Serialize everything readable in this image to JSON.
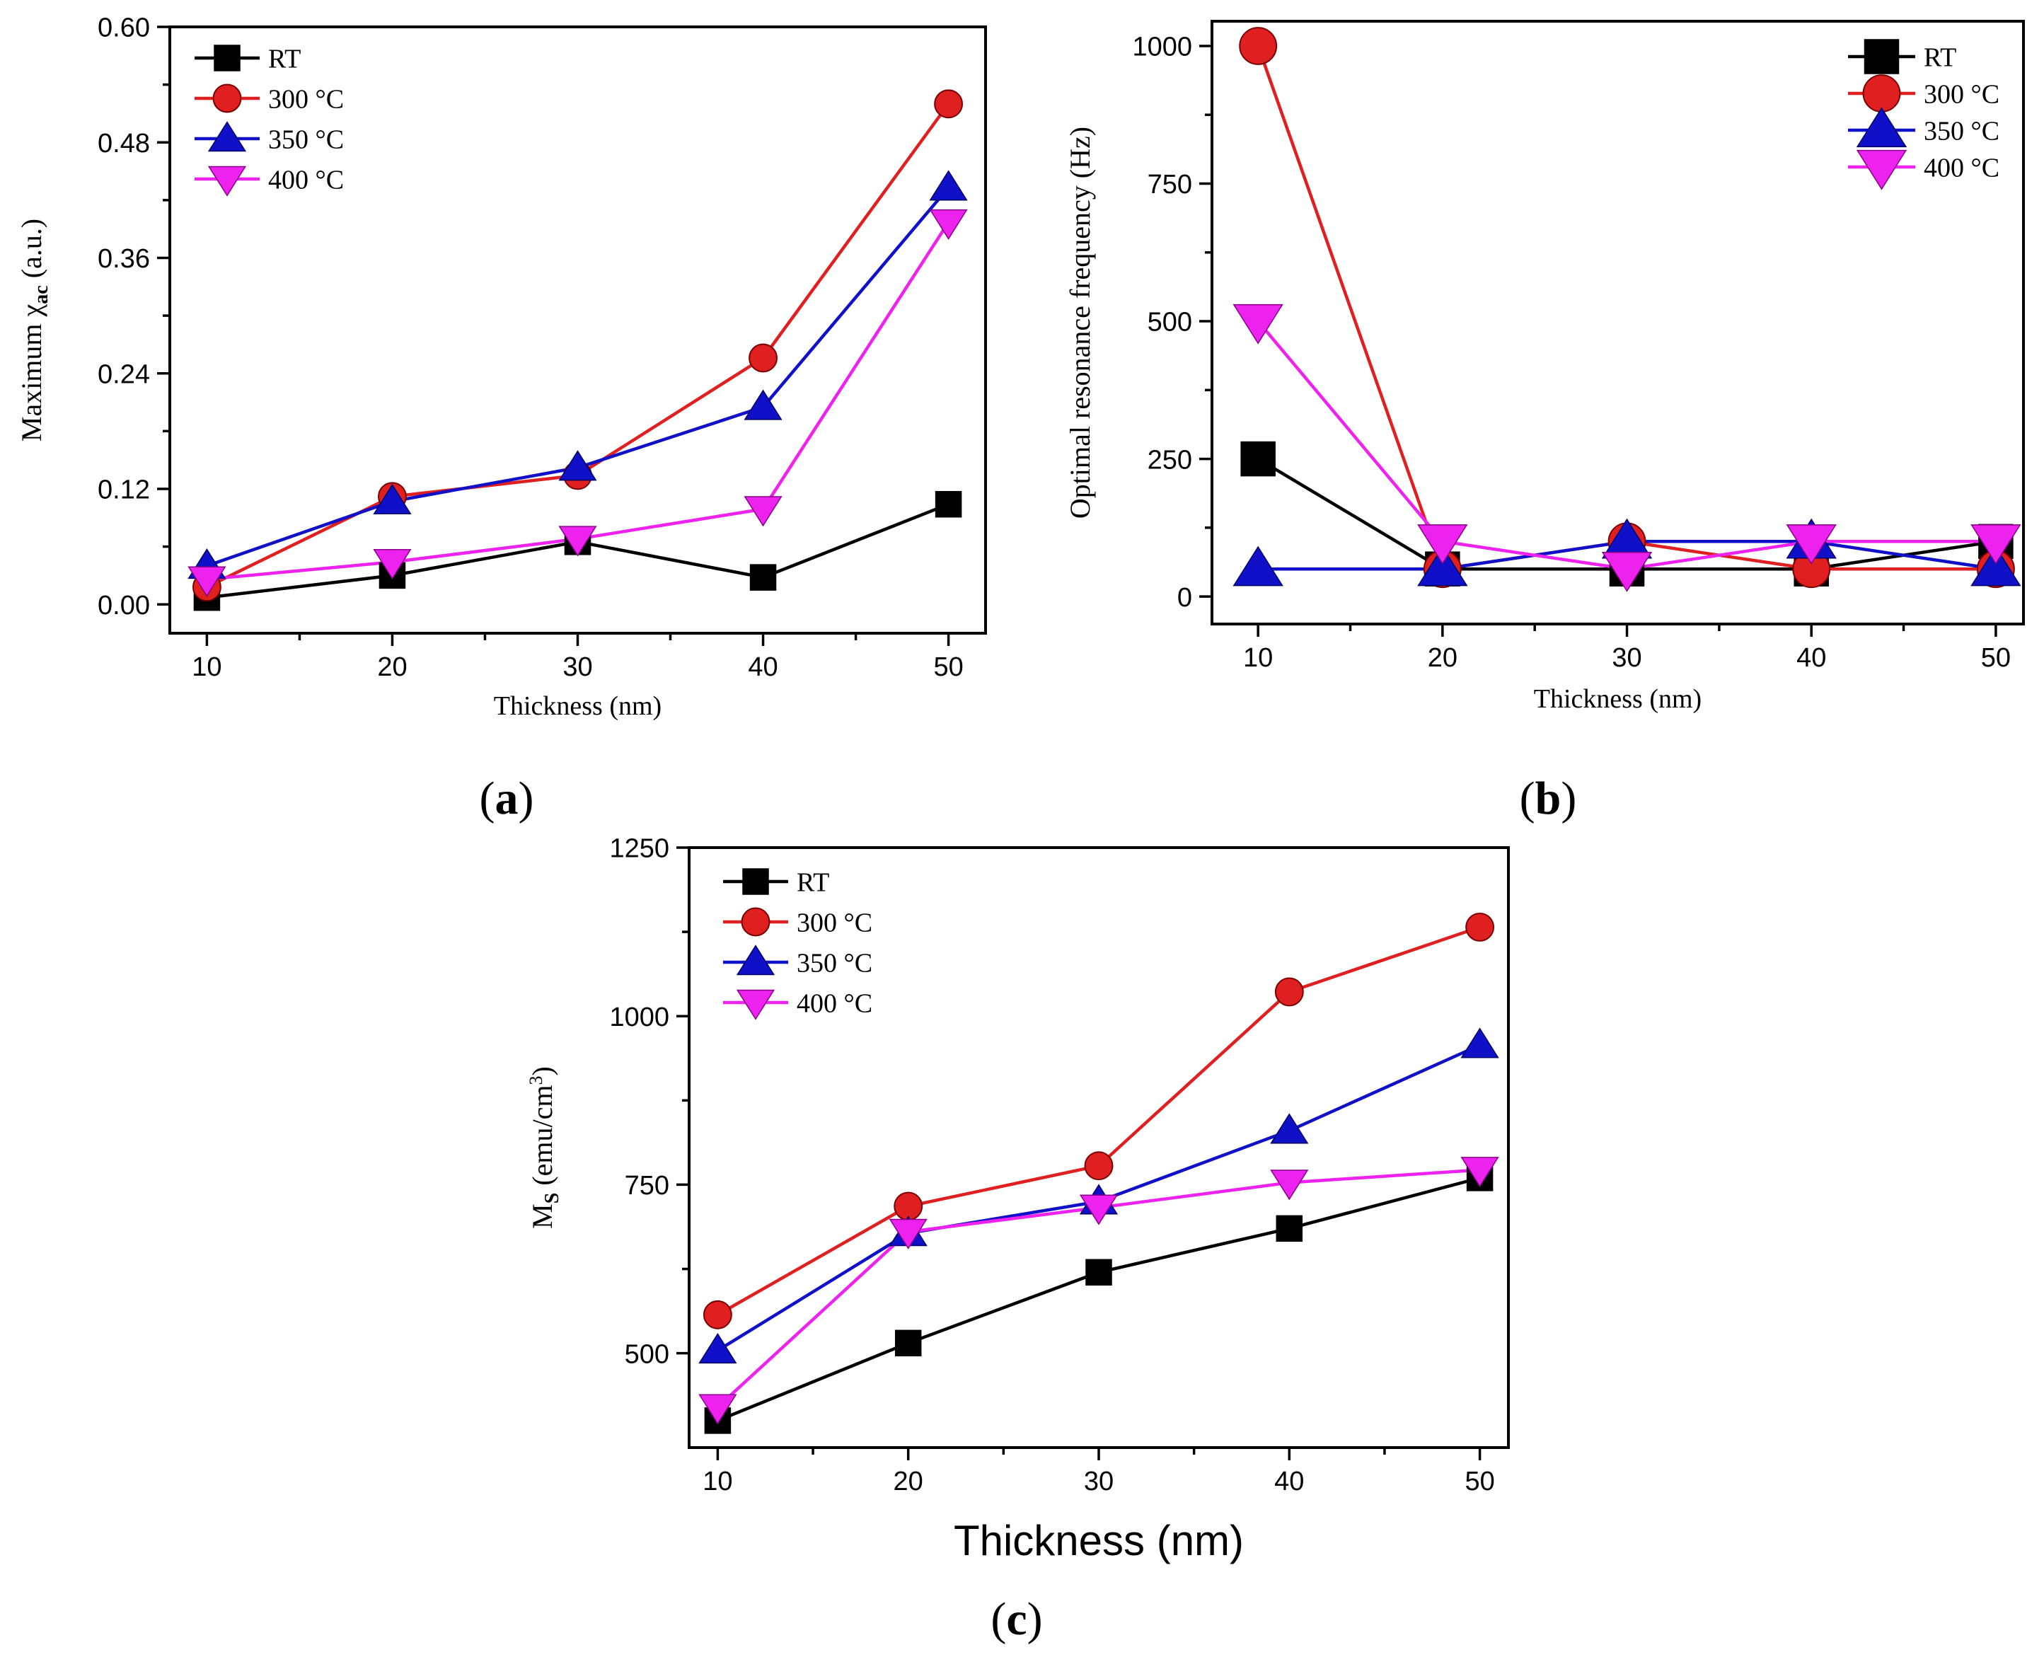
{
  "chart_data": [
    {
      "panel": "(a)",
      "type": "line",
      "title": "",
      "xlabel": "Thickness (nm)",
      "ylabel": "Maximum χ",
      "ylabel_sub": "ac",
      "ylabel_suffix": " (a.u.)",
      "x": [
        10,
        20,
        30,
        40,
        50
      ],
      "xlim": [
        8,
        52
      ],
      "ylim": [
        -0.03,
        0.6
      ],
      "xticks": [
        "10",
        "20",
        "30",
        "40",
        "50"
      ],
      "yticks": [
        "0.00",
        "0.12",
        "0.24",
        "0.36",
        "0.48",
        "0.60"
      ],
      "legend": "top-left",
      "series": [
        {
          "name": "RT",
          "color": "#000000",
          "marker": "square",
          "values": [
            0.007,
            0.03,
            0.065,
            0.028,
            0.104
          ]
        },
        {
          "name": "300 °C",
          "color": "#e02020",
          "marker": "circle",
          "values": [
            0.018,
            0.112,
            0.134,
            0.256,
            0.52
          ]
        },
        {
          "name": "350 °C",
          "color": "#1010c8",
          "marker": "triangle-up",
          "values": [
            0.04,
            0.107,
            0.142,
            0.205,
            0.433
          ]
        },
        {
          "name": "400 °C",
          "color": "#ee22ee",
          "marker": "triangle-down",
          "values": [
            0.026,
            0.044,
            0.068,
            0.099,
            0.397
          ]
        }
      ]
    },
    {
      "panel": "(b)",
      "type": "line",
      "title": "",
      "xlabel": "Thickness (nm)",
      "ylabel": "Optimal resonance frequency (Hz)",
      "x": [
        10,
        20,
        30,
        40,
        50
      ],
      "xlim": [
        7.5,
        51.5
      ],
      "ylim": [
        -50,
        1045
      ],
      "xticks": [
        "10",
        "20",
        "30",
        "40",
        "50"
      ],
      "yticks": [
        "0",
        "250",
        "500",
        "750",
        "1000"
      ],
      "legend": "top-right",
      "series": [
        {
          "name": "RT",
          "color": "#000000",
          "marker": "square",
          "values": [
            250,
            50,
            50,
            50,
            100
          ]
        },
        {
          "name": "300 °C",
          "color": "#e02020",
          "marker": "circle",
          "values": [
            1000,
            50,
            100,
            50,
            50
          ]
        },
        {
          "name": "350 °C",
          "color": "#1010c8",
          "marker": "triangle-up",
          "values": [
            50,
            50,
            100,
            100,
            50
          ]
        },
        {
          "name": "400 °C",
          "color": "#ee22ee",
          "marker": "triangle-down",
          "values": [
            500,
            100,
            50,
            100,
            100
          ]
        }
      ]
    },
    {
      "panel": "(c)",
      "type": "line",
      "title": "",
      "xlabel": "Thickness (nm)",
      "ylabel": "M",
      "ylabel_sub": "S",
      "ylabel_suffix": " (emu/cm",
      "ylabel_sup": "3",
      "ylabel_end": ")",
      "x": [
        10,
        20,
        30,
        40,
        50
      ],
      "xlim": [
        8.5,
        51.5
      ],
      "ylim": [
        360,
        1250
      ],
      "xticks": [
        "10",
        "20",
        "30",
        "40",
        "50"
      ],
      "yticks": [
        "500",
        "750",
        "1000",
        "1250"
      ],
      "legend": "top-left",
      "series": [
        {
          "name": "RT",
          "color": "#000000",
          "marker": "square",
          "values": [
            400,
            515,
            620,
            685,
            760
          ]
        },
        {
          "name": "300 °C",
          "color": "#e02020",
          "marker": "circle",
          "values": [
            557,
            718,
            778,
            1036,
            1132
          ]
        },
        {
          "name": "350 °C",
          "color": "#1010c8",
          "marker": "triangle-up",
          "values": [
            504,
            678,
            725,
            830,
            957
          ]
        },
        {
          "name": "400 °C",
          "color": "#ee22ee",
          "marker": "triangle-down",
          "values": [
            420,
            680,
            716,
            753,
            772
          ]
        }
      ]
    }
  ]
}
